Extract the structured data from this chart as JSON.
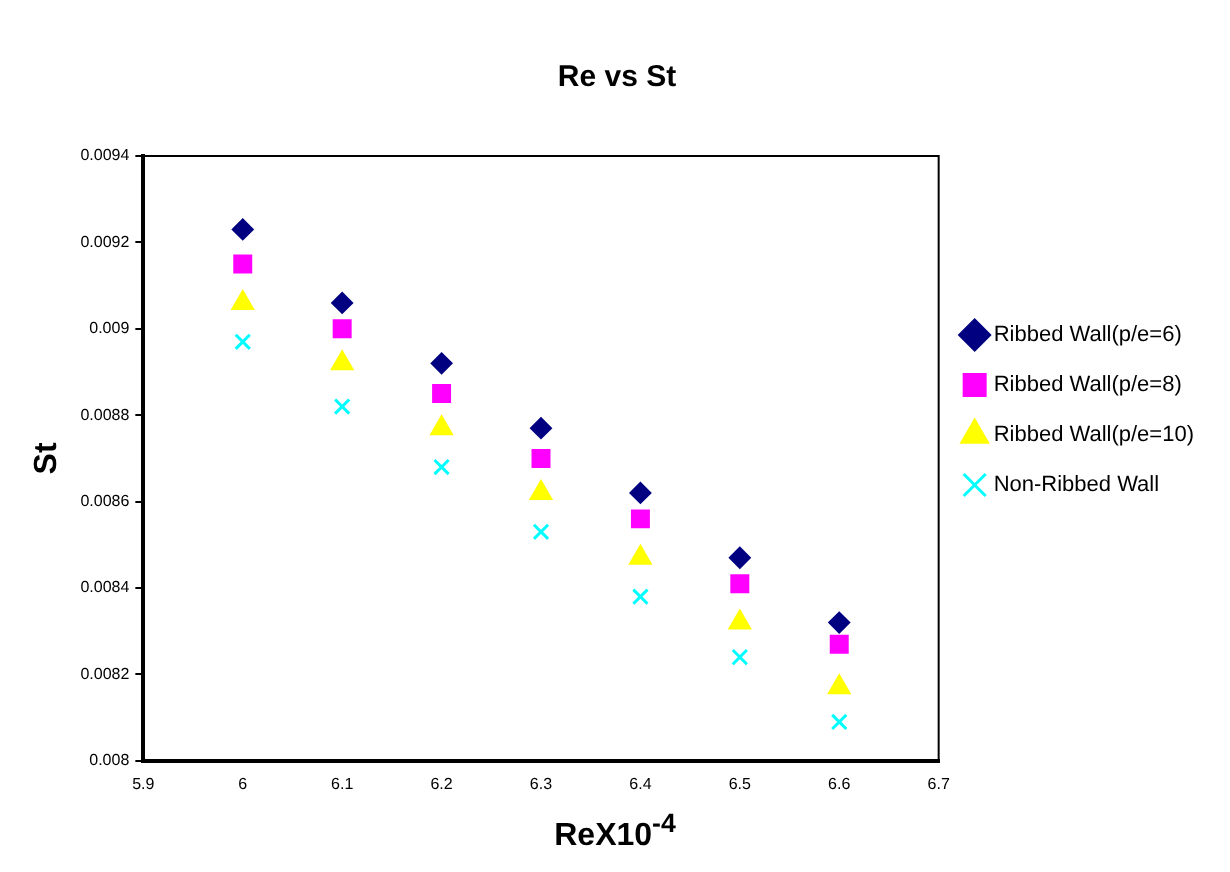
{
  "chart_data": {
    "type": "scatter",
    "title": "Re vs St",
    "xlabel": "ReX10$^{-4}$",
    "ylabel": "St",
    "x": [
      6,
      6.1,
      6.2,
      6.3,
      6.4,
      6.5,
      6.6
    ],
    "series": [
      {
        "name": "Ribbed Wall(p/e=6)",
        "color": "#000080",
        "marker": "diamond",
        "values": [
          0.00923,
          0.00906,
          0.00892,
          0.00877,
          0.00862,
          0.00847,
          0.00832
        ]
      },
      {
        "name": "Ribbed Wall(p/e=8)",
        "color": "#ff00ff",
        "marker": "square",
        "values": [
          0.00915,
          0.009,
          0.00885,
          0.0087,
          0.00856,
          0.00841,
          0.00827
        ]
      },
      {
        "name": "Ribbed Wall(p/e=10)",
        "color": "#ffff00",
        "marker": "triangle",
        "values": [
          0.00906,
          0.00892,
          0.00877,
          0.00862,
          0.00847,
          0.00832,
          0.00817
        ]
      },
      {
        "name": "Non-Ribbed Wall",
        "color": "#00ffff",
        "marker": "cross",
        "values": [
          0.00897,
          0.00882,
          0.00868,
          0.00853,
          0.00838,
          0.00824,
          0.00809
        ]
      }
    ],
    "xlim": [
      5.9,
      6.7
    ],
    "xticks": [
      5.9,
      6,
      6.1,
      6.2,
      6.3,
      6.4,
      6.5,
      6.6,
      6.7
    ],
    "ylim": [
      0.008,
      0.0094
    ],
    "yticks": [
      0.008,
      0.0082,
      0.0084,
      0.0086,
      0.0088,
      0.009,
      0.0092,
      0.0094
    ],
    "grid": false,
    "legend": "right"
  }
}
